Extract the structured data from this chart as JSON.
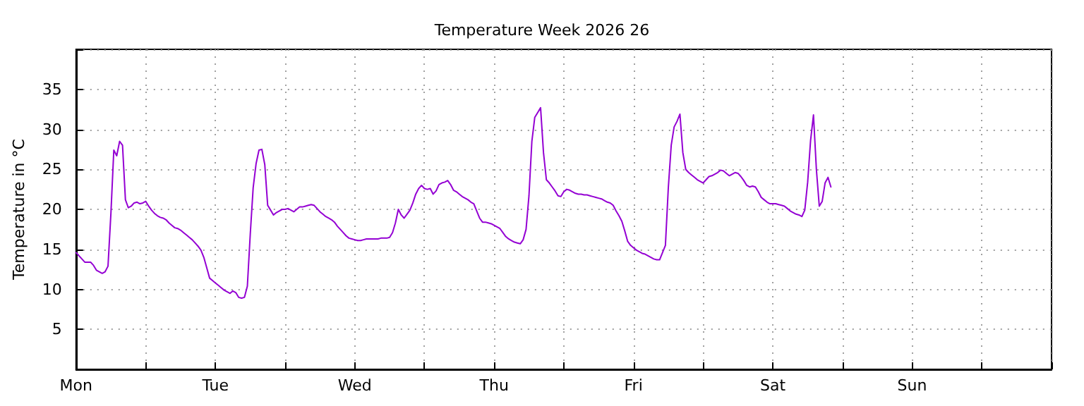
{
  "chart_data": {
    "type": "line",
    "title": "Temperature Week 2026 26",
    "ylabel": "Temperature in °C",
    "categories": [
      "Mon",
      null,
      null,
      null,
      null,
      null,
      null,
      null,
      null,
      null,
      null,
      null,
      null,
      null,
      null,
      null,
      null,
      null,
      null,
      null,
      null,
      null,
      null,
      null,
      null,
      null,
      null,
      null,
      null,
      null,
      null,
      null,
      null,
      null,
      null,
      null,
      null,
      null,
      null,
      null,
      null,
      null,
      null,
      null,
      null,
      null,
      null,
      null,
      "Tue",
      null,
      null,
      null,
      null,
      null,
      null,
      null,
      null,
      null,
      null,
      null,
      null,
      null,
      null,
      null,
      null,
      null,
      null,
      null,
      null,
      null,
      null,
      null,
      null,
      null,
      null,
      null,
      null,
      null,
      null,
      null,
      null,
      null,
      null,
      null,
      null,
      null,
      null,
      null,
      null,
      null,
      null,
      null,
      null,
      null,
      null,
      null,
      "Wed",
      null,
      null,
      null,
      null,
      null,
      null,
      null,
      null,
      null,
      null,
      null,
      null,
      null,
      null,
      null,
      null,
      null,
      null,
      null,
      null,
      null,
      null,
      null,
      null,
      null,
      null,
      null,
      null,
      null,
      null,
      null,
      null,
      null,
      null,
      null,
      null,
      null,
      null,
      null,
      null,
      null,
      null,
      null,
      null,
      null,
      null,
      null,
      "Thu",
      null,
      null,
      null,
      null,
      null,
      null,
      null,
      null,
      null,
      null,
      null,
      null,
      null,
      null,
      null,
      null,
      null,
      null,
      null,
      null,
      null,
      null,
      null,
      null,
      null,
      null,
      null,
      null,
      null,
      null,
      null,
      null,
      null,
      null,
      null,
      null,
      null,
      null,
      null,
      null,
      null,
      null,
      null,
      null,
      null,
      null,
      null,
      "Fri",
      null,
      null,
      null,
      null,
      null,
      null,
      null,
      null,
      null,
      null,
      null,
      null,
      null,
      null,
      null,
      null,
      null,
      null,
      null,
      null,
      null,
      null,
      null,
      null,
      null,
      null,
      null,
      null,
      null,
      null,
      null,
      null,
      null,
      null,
      null,
      null,
      null,
      null,
      null,
      null,
      null,
      null,
      null,
      null,
      null,
      null,
      null,
      "Sat",
      null,
      null,
      null,
      null,
      null,
      null,
      null,
      null,
      null,
      null,
      null,
      null,
      null,
      null,
      null,
      null,
      null,
      null,
      null,
      null,
      null,
      null,
      null,
      null,
      null,
      null,
      null,
      null,
      null,
      null,
      null,
      null,
      null,
      null,
      null,
      null,
      null,
      null,
      null,
      null,
      null,
      null,
      null,
      null,
      null,
      null,
      null,
      "Sun",
      null,
      null,
      null,
      null,
      null,
      null,
      null,
      null,
      null,
      null,
      null,
      null,
      null,
      null,
      null,
      null,
      null,
      null,
      null,
      null,
      null,
      null,
      null,
      null,
      null,
      null,
      null,
      null,
      null,
      null,
      null,
      null,
      null,
      null,
      null,
      null,
      null,
      null,
      null,
      null,
      null,
      null,
      null,
      null,
      null,
      null,
      null,
      null
    ],
    "series": [
      {
        "color": "#9400d3",
        "values": [
          14.6,
          14.2,
          13.8,
          13.4,
          13.4,
          13.4,
          13.0,
          12.4,
          12.2,
          12.0,
          12.2,
          12.9,
          19.5,
          27.4,
          26.7,
          28.5,
          28.0,
          21.2,
          20.2,
          20.4,
          20.8,
          20.9,
          20.7,
          20.8,
          21.0,
          20.4,
          19.9,
          19.5,
          19.2,
          19.0,
          18.9,
          18.7,
          18.3,
          18.0,
          17.7,
          17.6,
          17.4,
          17.1,
          16.8,
          16.5,
          16.2,
          15.8,
          15.4,
          14.9,
          14.0,
          12.7,
          11.4,
          11.1,
          10.8,
          10.5,
          10.2,
          9.9,
          9.7,
          9.5,
          9.8,
          9.6,
          9.0,
          8.9,
          9.0,
          10.4,
          16.9,
          22.7,
          25.7,
          27.4,
          27.5,
          25.6,
          20.5,
          19.9,
          19.3,
          19.6,
          19.8,
          20.0,
          20.0,
          20.1,
          19.9,
          19.7,
          20.0,
          20.3,
          20.3,
          20.4,
          20.5,
          20.6,
          20.5,
          20.1,
          19.7,
          19.4,
          19.1,
          18.9,
          18.7,
          18.4,
          17.9,
          17.5,
          17.1,
          16.7,
          16.4,
          16.3,
          16.2,
          16.1,
          16.1,
          16.2,
          16.3,
          16.3,
          16.3,
          16.3,
          16.3,
          16.4,
          16.4,
          16.4,
          16.5,
          17.1,
          18.3,
          20.0,
          19.3,
          18.9,
          19.4,
          19.9,
          20.8,
          21.9,
          22.6,
          23.0,
          22.6,
          22.5,
          22.6,
          21.9,
          22.3,
          23.1,
          23.3,
          23.4,
          23.6,
          23.1,
          22.4,
          22.2,
          21.9,
          21.6,
          21.4,
          21.2,
          20.9,
          20.7,
          19.8,
          18.9,
          18.4,
          18.4,
          18.3,
          18.2,
          18.0,
          17.8,
          17.6,
          17.1,
          16.6,
          16.3,
          16.1,
          15.9,
          15.8,
          15.7,
          16.2,
          17.5,
          21.7,
          28.5,
          31.5,
          32.1,
          32.7,
          27.1,
          23.7,
          23.3,
          22.8,
          22.3,
          21.7,
          21.6,
          22.2,
          22.5,
          22.4,
          22.2,
          22.0,
          21.9,
          21.9,
          21.8,
          21.8,
          21.7,
          21.6,
          21.5,
          21.4,
          21.3,
          21.1,
          20.9,
          20.8,
          20.5,
          19.8,
          19.2,
          18.5,
          17.3,
          16.0,
          15.5,
          15.2,
          14.9,
          14.7,
          14.5,
          14.4,
          14.2,
          14.0,
          13.8,
          13.7,
          13.7,
          14.6,
          15.5,
          22.7,
          28.0,
          30.3,
          31.0,
          31.9,
          27.1,
          25.0,
          24.6,
          24.3,
          24.0,
          23.7,
          23.5,
          23.3,
          23.7,
          24.1,
          24.2,
          24.4,
          24.6,
          24.9,
          24.8,
          24.5,
          24.2,
          24.4,
          24.6,
          24.5,
          24.1,
          23.6,
          23.0,
          22.8,
          22.9,
          22.8,
          22.2,
          21.5,
          21.2,
          20.9,
          20.7,
          20.7,
          20.7,
          20.6,
          20.5,
          20.4,
          20.1,
          19.8,
          19.6,
          19.4,
          19.3,
          19.1,
          19.9,
          23.4,
          28.6,
          31.8,
          25.0,
          20.4,
          21.0,
          23.3,
          24.0,
          22.8,
          null,
          null,
          null,
          null,
          null,
          null,
          null,
          null,
          null,
          null,
          null,
          null,
          null,
          null,
          null,
          null,
          null,
          null,
          null,
          null,
          null,
          null,
          null,
          null,
          null,
          null,
          null,
          null,
          null,
          null,
          null,
          null,
          null,
          null,
          null,
          null,
          null,
          null,
          null,
          null,
          null,
          null,
          null,
          null,
          null,
          null,
          null,
          null,
          null,
          null,
          null,
          null,
          null,
          null,
          null,
          null,
          null,
          null,
          null,
          null,
          null,
          null,
          null,
          null,
          null,
          null,
          null,
          null,
          null,
          null,
          null,
          null,
          null,
          null,
          null,
          null
        ]
      }
    ],
    "ylim": [
      0,
      40
    ],
    "yticks": [
      5,
      10,
      15,
      20,
      25,
      30,
      35
    ],
    "grid": true,
    "marker": "none",
    "line_style": "solid"
  }
}
